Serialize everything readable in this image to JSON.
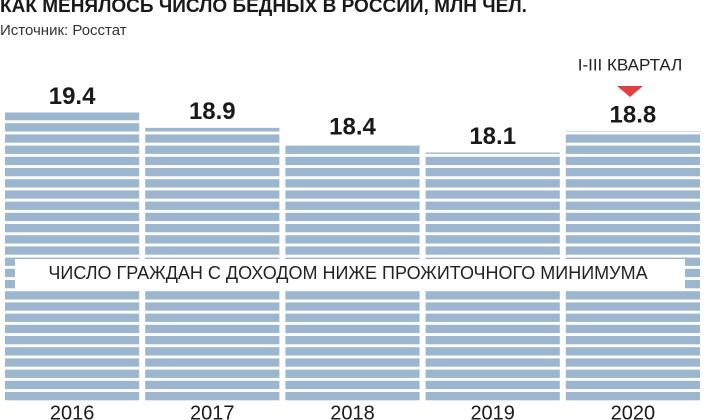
{
  "chart_data": {
    "type": "bar",
    "title": "КАК МЕНЯЛОСЬ ЧИСЛО БЕДНЫХ В РОССИИ, МЛН ЧЕЛ.",
    "subtitle": "Источник: Росстат",
    "annotation": "I-III КВАРТАЛ",
    "inner_label": "ЧИСЛО ГРАЖДАН С ДОХОДОМ НИЖЕ ПРОЖИТОЧНОГО МИНИМУМА",
    "categories": [
      "2016",
      "2017",
      "2018",
      "2019",
      "2020"
    ],
    "values": [
      19.4,
      18.9,
      18.4,
      18.1,
      18.8
    ],
    "color": "#9db6cf",
    "ylim": [
      10,
      20
    ]
  }
}
